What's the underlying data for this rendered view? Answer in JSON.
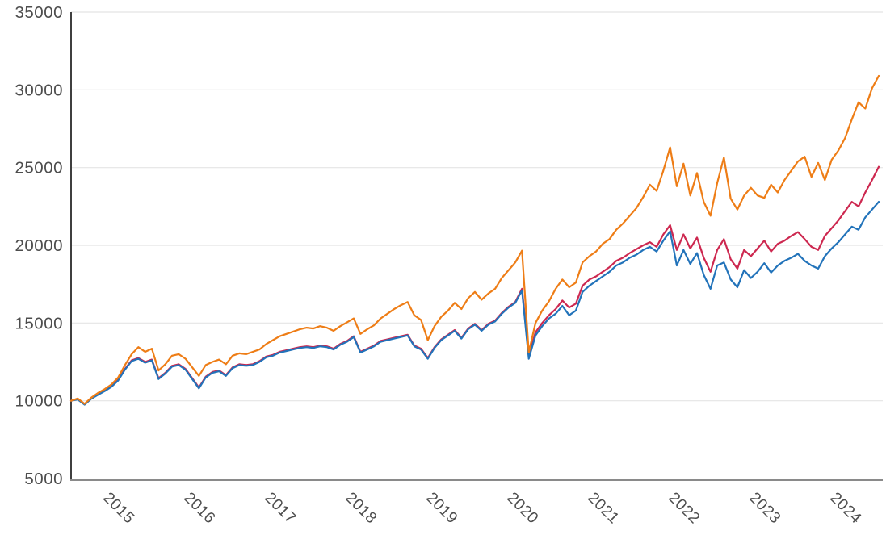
{
  "style": {
    "background": "#ffffff",
    "grid_color": "#e4e4e4",
    "y_axis_line_color": "#3f3f3f",
    "x_axis_line_color": "#8a8a8a",
    "tick_label_color": "#4d4d4d"
  },
  "chart_data": {
    "type": "line",
    "title": "",
    "xlabel": "",
    "ylabel": "",
    "legend": "none",
    "grid": true,
    "index_base_value": 10000,
    "xlim": [
      2014.5,
      2024.55
    ],
    "ylim": [
      5000,
      35000
    ],
    "x_ticks": [
      "2015",
      "2016",
      "2017",
      "2018",
      "2019",
      "2020",
      "2021",
      "2022",
      "2023",
      "2024"
    ],
    "x_tick_values": [
      2015,
      2016,
      2017,
      2018,
      2019,
      2020,
      2021,
      2022,
      2023,
      2024
    ],
    "x_tick_label_rotation_deg": 45,
    "y_ticks": [
      "5000",
      "10000",
      "15000",
      "20000",
      "25000",
      "30000",
      "35000"
    ],
    "y_tick_values": [
      5000,
      10000,
      15000,
      20000,
      25000,
      30000,
      35000
    ],
    "x_start": 2014.5,
    "x_step": 0.0833333,
    "draw_order": [
      "crimson-series",
      "blue-series",
      "orange-series"
    ],
    "series": [
      {
        "name": "orange-series",
        "color": "#EE7D16",
        "end_value": 30900,
        "values": [
          10000,
          10150,
          9800,
          10200,
          10500,
          10750,
          11050,
          11500,
          12300,
          13000,
          13450,
          13150,
          13350,
          11950,
          12350,
          12900,
          13000,
          12700,
          12150,
          11600,
          12300,
          12500,
          12650,
          12350,
          12900,
          13050,
          13000,
          13150,
          13300,
          13650,
          13900,
          14150,
          14300,
          14450,
          14600,
          14700,
          14650,
          14800,
          14700,
          14500,
          14800,
          15050,
          15300,
          14300,
          14600,
          14850,
          15300,
          15600,
          15900,
          16150,
          16350,
          15500,
          15200,
          13900,
          14800,
          15400,
          15800,
          16300,
          15900,
          16600,
          17000,
          16500,
          16900,
          17200,
          17900,
          18400,
          18900,
          19650,
          13100,
          15000,
          15800,
          16400,
          17200,
          17800,
          17300,
          17600,
          18900,
          19300,
          19600,
          20100,
          20400,
          21000,
          21400,
          21900,
          22400,
          23100,
          23900,
          23500,
          24800,
          26300,
          23800,
          25250,
          23200,
          24650,
          22800,
          21900,
          24000,
          25650,
          23000,
          22300,
          23200,
          23700,
          23200,
          23050,
          23900,
          23400,
          24200,
          24800,
          25400,
          25700,
          24400,
          25300,
          24200,
          25500,
          26100,
          26900,
          28100,
          29200,
          28800,
          30100,
          30900
        ]
      },
      {
        "name": "crimson-series",
        "color": "#CD2850",
        "end_value": 25050,
        "values": [
          10000,
          10120,
          9780,
          10170,
          10430,
          10680,
          10950,
          11350,
          12050,
          12600,
          12750,
          12500,
          12650,
          11450,
          11800,
          12250,
          12350,
          12050,
          11450,
          10850,
          11550,
          11850,
          11950,
          11650,
          12150,
          12350,
          12300,
          12350,
          12550,
          12850,
          12950,
          13150,
          13250,
          13350,
          13450,
          13500,
          13450,
          13550,
          13500,
          13350,
          13650,
          13850,
          14150,
          13150,
          13350,
          13550,
          13850,
          13950,
          14050,
          14150,
          14250,
          13550,
          13350,
          12750,
          13450,
          13950,
          14250,
          14550,
          14050,
          14650,
          14950,
          14550,
          14950,
          15150,
          15650,
          16050,
          16350,
          17200,
          12900,
          14400,
          15000,
          15500,
          15900,
          16450,
          16000,
          16250,
          17400,
          17800,
          18000,
          18300,
          18600,
          19000,
          19200,
          19500,
          19750,
          20000,
          20200,
          19900,
          20700,
          21300,
          19700,
          20700,
          19800,
          20500,
          19200,
          18300,
          19700,
          20400,
          19100,
          18500,
          19700,
          19300,
          19800,
          20300,
          19600,
          20100,
          20300,
          20600,
          20850,
          20400,
          19900,
          19700,
          20600,
          21100,
          21600,
          22200,
          22800,
          22500,
          23400,
          24200,
          25050
        ]
      },
      {
        "name": "blue-series",
        "color": "#2273BA",
        "end_value": 22800,
        "values": [
          10000,
          10080,
          9750,
          10130,
          10380,
          10620,
          10900,
          11300,
          12000,
          12550,
          12700,
          12450,
          12600,
          11400,
          11750,
          12200,
          12300,
          12000,
          11400,
          10800,
          11500,
          11800,
          11900,
          11600,
          12100,
          12300,
          12250,
          12300,
          12500,
          12800,
          12900,
          13100,
          13200,
          13300,
          13400,
          13450,
          13400,
          13500,
          13450,
          13300,
          13600,
          13800,
          14100,
          13100,
          13300,
          13500,
          13800,
          13900,
          14000,
          14100,
          14200,
          13500,
          13300,
          12700,
          13400,
          13900,
          14200,
          14500,
          14000,
          14600,
          14900,
          14500,
          14900,
          15100,
          15600,
          16000,
          16300,
          17100,
          12700,
          14200,
          14800,
          15300,
          15600,
          16100,
          15500,
          15800,
          17000,
          17400,
          17700,
          18000,
          18300,
          18700,
          18900,
          19200,
          19400,
          19700,
          19900,
          19600,
          20300,
          20900,
          18700,
          19700,
          18800,
          19500,
          18100,
          17200,
          18700,
          18900,
          17800,
          17300,
          18400,
          17900,
          18300,
          18850,
          18250,
          18700,
          19000,
          19200,
          19450,
          19000,
          18700,
          18500,
          19300,
          19800,
          20200,
          20700,
          21200,
          21000,
          21800,
          22300,
          22800
        ]
      }
    ]
  }
}
